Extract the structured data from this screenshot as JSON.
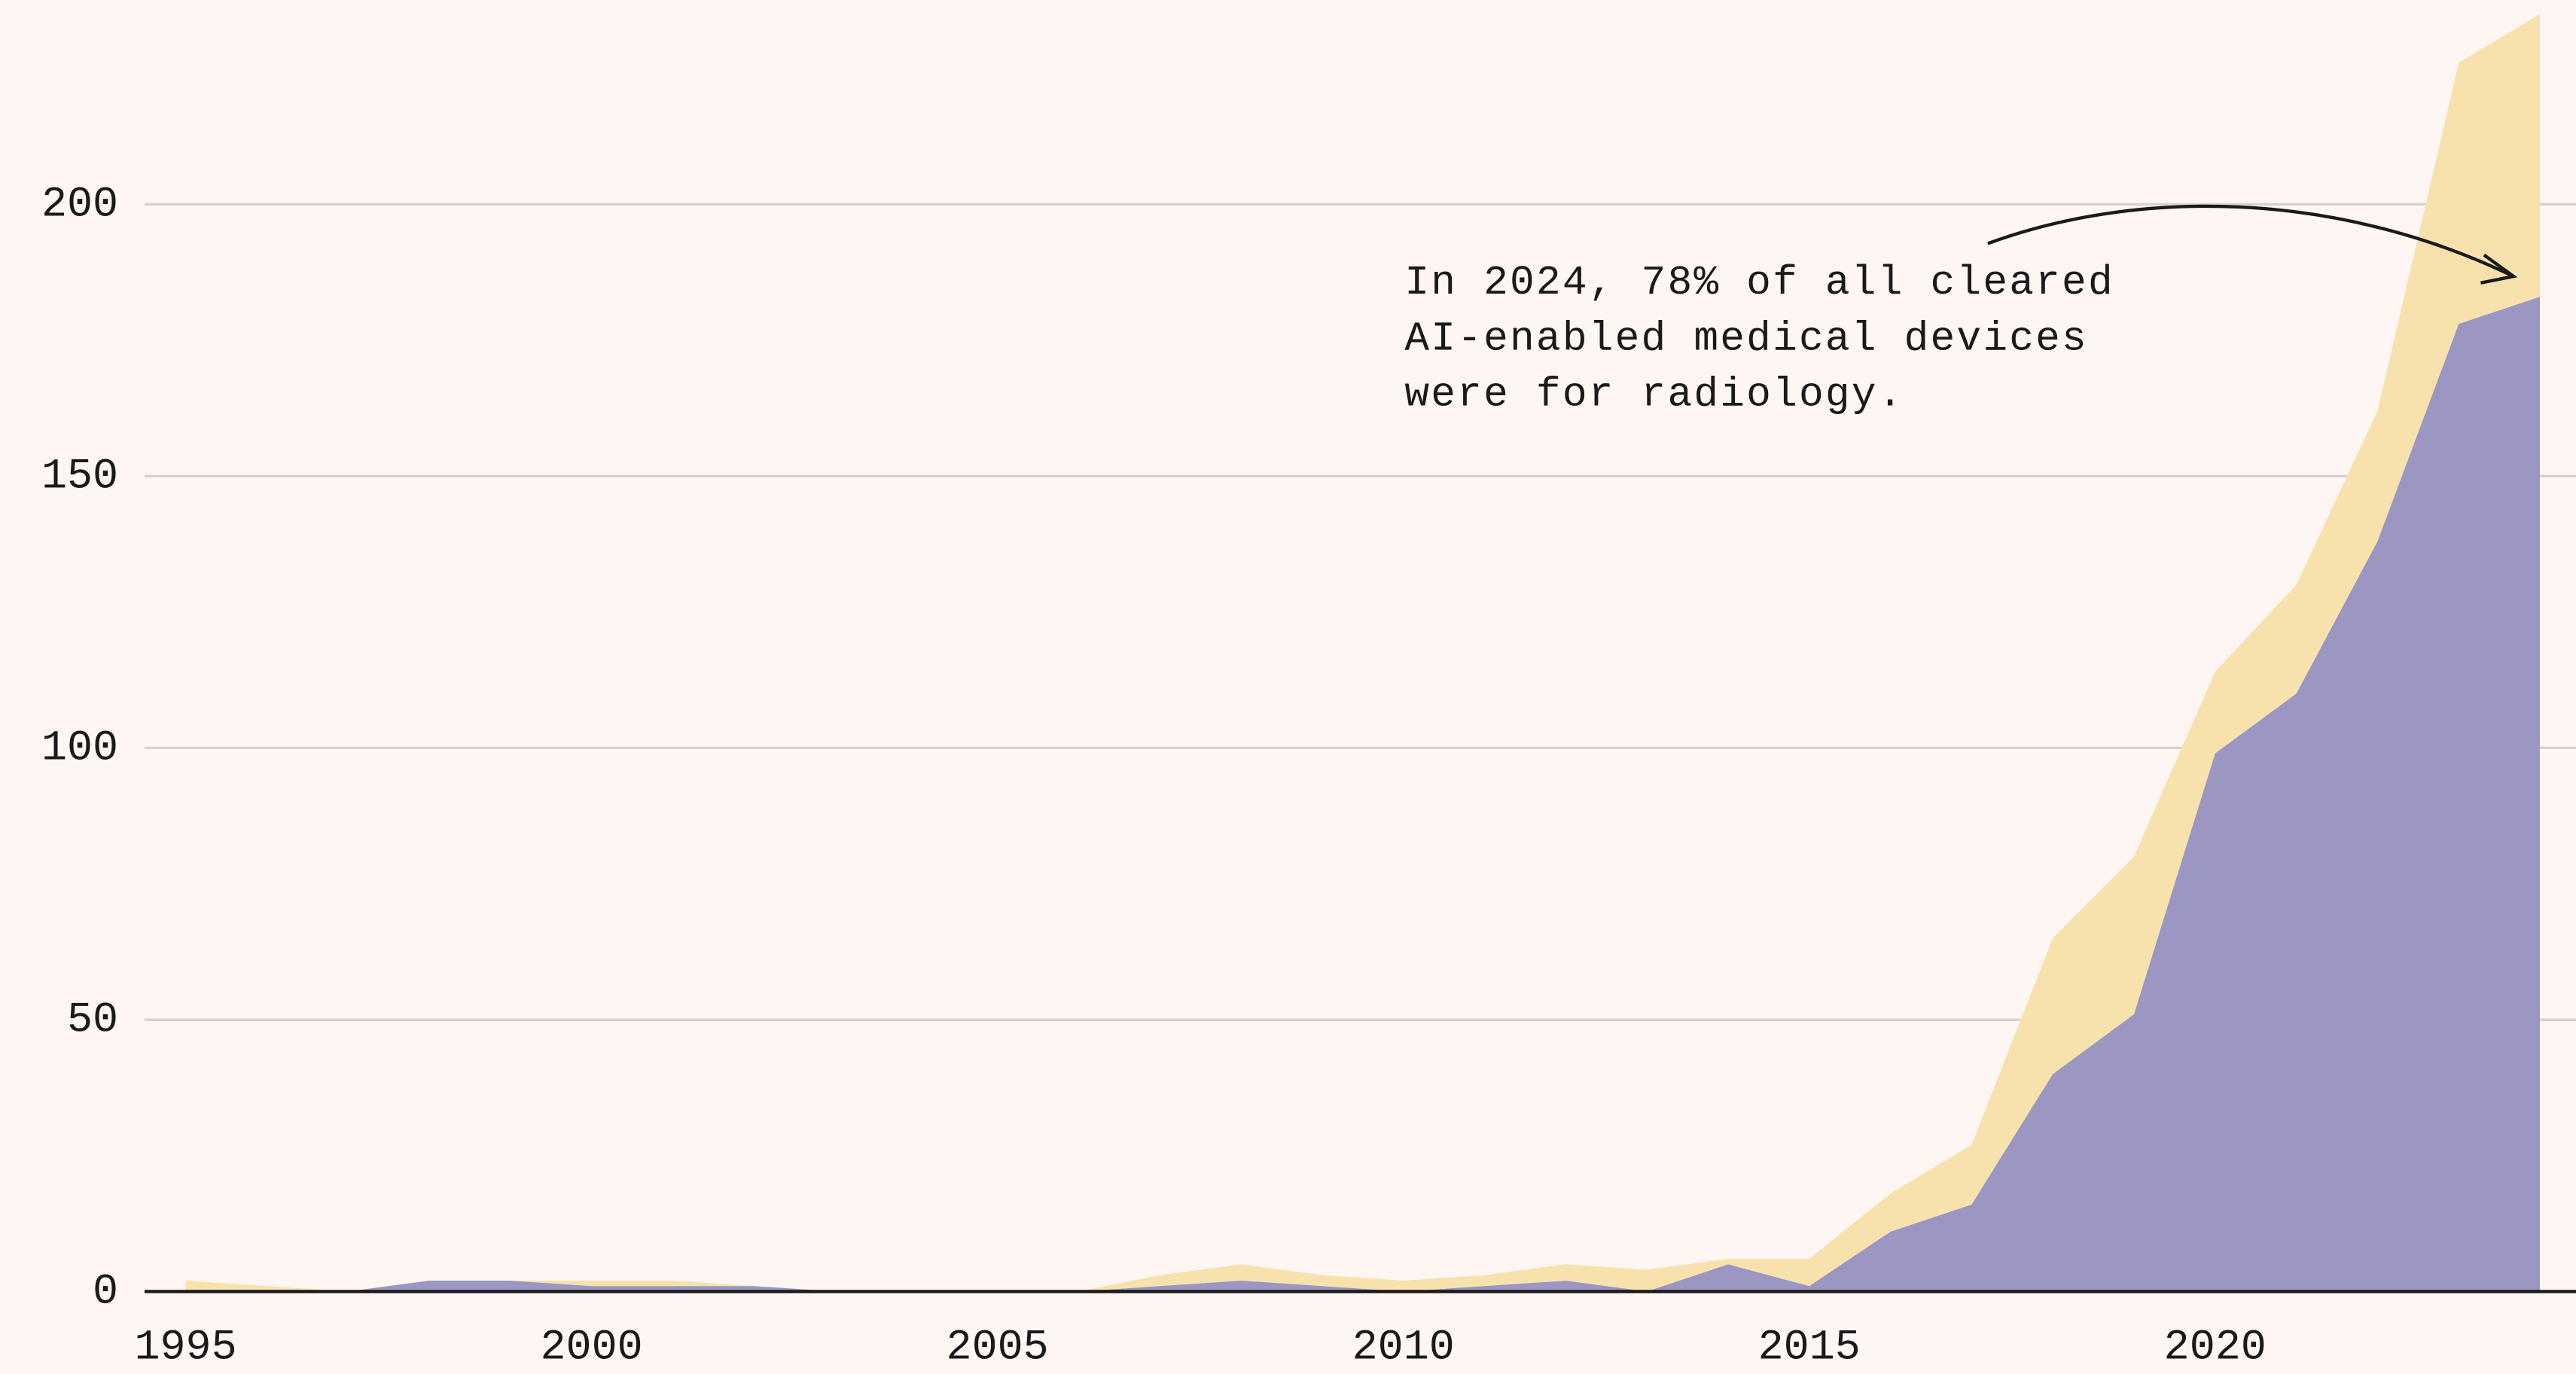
{
  "chart_data": {
    "type": "stacked_area",
    "x": [
      1995,
      1996,
      1997,
      1998,
      1999,
      2000,
      2001,
      2002,
      2003,
      2004,
      2005,
      2006,
      2007,
      2008,
      2009,
      2010,
      2011,
      2012,
      2013,
      2014,
      2015,
      2016,
      2017,
      2018,
      2019,
      2020,
      2021,
      2022,
      2023,
      2024
    ],
    "series": [
      {
        "color": "#9b97c2",
        "values": [
          0,
          0,
          0,
          2,
          2,
          1,
          1,
          1,
          0,
          0,
          0,
          0,
          1,
          2,
          1,
          0,
          1,
          2,
          0,
          5,
          1,
          11,
          16,
          40,
          51,
          99,
          110,
          138,
          178,
          183
        ]
      },
      {
        "color": "#f7e2ad",
        "values": [
          2,
          1,
          0,
          0,
          0,
          1,
          1,
          0,
          0,
          0,
          0,
          0,
          2,
          3,
          2,
          2,
          2,
          3,
          4,
          1,
          5,
          7,
          11,
          25,
          29,
          15,
          20,
          24,
          48,
          52
        ]
      }
    ],
    "xlim": [
      1995,
      2024
    ],
    "xticks": [
      1995,
      2000,
      2005,
      2010,
      2015,
      2020
    ],
    "ylim": [
      0,
      236
    ],
    "yticks": [
      0,
      50,
      100,
      150,
      200
    ],
    "grid": true,
    "annotation": [
      "In 2024, 78% of all cleared",
      "AI-enabled medical devices",
      "were for radiology."
    ]
  }
}
